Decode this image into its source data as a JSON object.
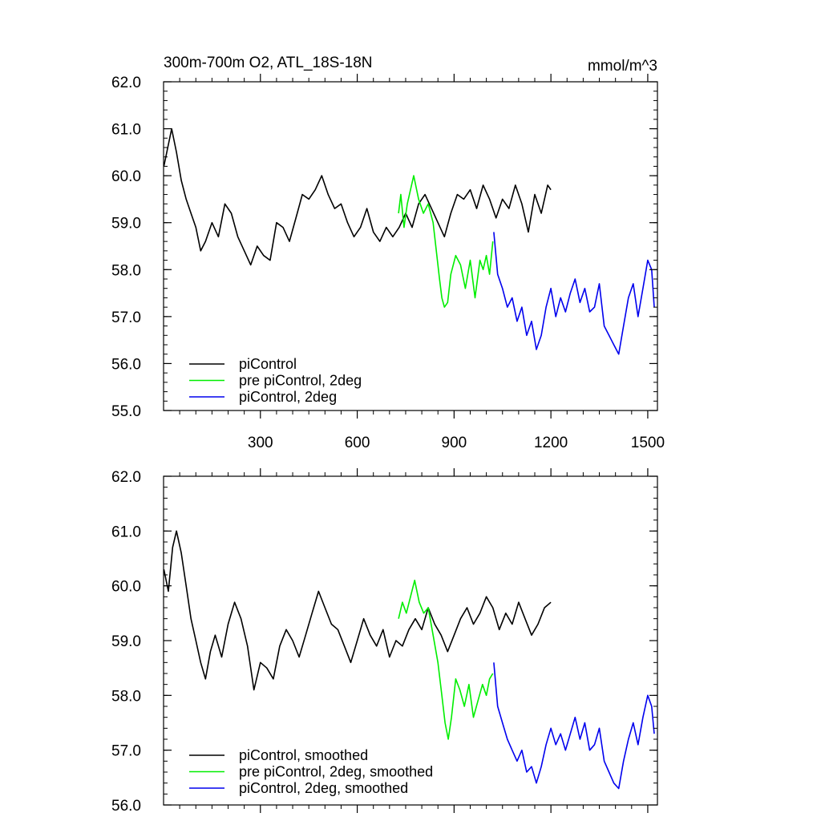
{
  "chart_data": [
    {
      "type": "line",
      "title": "300m-700m O2, ATL_18S-18N",
      "units": "mmol/m^3",
      "xlim": [
        0,
        1530
      ],
      "ylim": [
        55.0,
        62.0
      ],
      "x_ticks": [
        300,
        600,
        900,
        1200,
        1500
      ],
      "x_tick_labels": [
        "300",
        "600",
        "900",
        "1200",
        "1500"
      ],
      "y_ticks": [
        55.0,
        56.0,
        57.0,
        58.0,
        59.0,
        60.0,
        61.0,
        62.0
      ],
      "y_tick_labels": [
        "55.0",
        "56.0",
        "57.0",
        "58.0",
        "59.0",
        "60.0",
        "61.0",
        "62.0"
      ],
      "legend": "bottom-left",
      "series": [
        {
          "name": "piControl",
          "color": "#000000",
          "x": [
            1,
            25,
            40,
            55,
            70,
            85,
            100,
            115,
            130,
            150,
            170,
            190,
            210,
            230,
            250,
            270,
            290,
            310,
            330,
            350,
            370,
            390,
            410,
            430,
            450,
            470,
            490,
            510,
            530,
            550,
            570,
            590,
            610,
            630,
            650,
            670,
            690,
            710,
            730,
            750,
            770,
            790,
            810,
            830,
            850,
            870,
            890,
            910,
            930,
            950,
            970,
            990,
            1010,
            1030,
            1050,
            1070,
            1090,
            1110,
            1130,
            1150,
            1170,
            1190,
            1200
          ],
          "y": [
            60.2,
            61.0,
            60.5,
            59.9,
            59.5,
            59.2,
            58.9,
            58.4,
            58.6,
            59.0,
            58.7,
            59.4,
            59.2,
            58.7,
            58.4,
            58.1,
            58.5,
            58.3,
            58.2,
            59.0,
            58.9,
            58.6,
            59.1,
            59.6,
            59.5,
            59.7,
            60.0,
            59.6,
            59.3,
            59.4,
            59.0,
            58.7,
            58.9,
            59.3,
            58.8,
            58.6,
            58.9,
            58.7,
            58.9,
            59.2,
            58.9,
            59.4,
            59.6,
            59.3,
            59.0,
            58.7,
            59.2,
            59.6,
            59.5,
            59.7,
            59.3,
            59.8,
            59.5,
            59.1,
            59.5,
            59.3,
            59.8,
            59.4,
            58.8,
            59.6,
            59.2,
            59.8,
            59.7
          ]
        },
        {
          "name": "pre piControl, 2deg",
          "color": "#00ee00",
          "x": [
            728,
            735,
            745,
            755,
            765,
            775,
            790,
            805,
            820,
            835,
            845,
            855,
            862,
            870,
            880,
            890,
            905,
            920,
            935,
            950,
            965,
            980,
            990,
            1000,
            1010,
            1020
          ],
          "y": [
            59.2,
            59.6,
            58.9,
            59.4,
            59.7,
            60.0,
            59.5,
            59.2,
            59.4,
            59.0,
            58.4,
            57.8,
            57.4,
            57.2,
            57.3,
            57.9,
            58.3,
            58.1,
            57.6,
            58.2,
            57.4,
            58.2,
            58.0,
            58.3,
            57.9,
            58.6
          ]
        },
        {
          "name": "piControl, 2deg",
          "color": "#0000ee",
          "x": [
            1023,
            1035,
            1050,
            1065,
            1080,
            1095,
            1110,
            1125,
            1140,
            1155,
            1170,
            1185,
            1200,
            1215,
            1230,
            1245,
            1260,
            1275,
            1290,
            1305,
            1320,
            1335,
            1350,
            1365,
            1380,
            1395,
            1410,
            1425,
            1440,
            1455,
            1470,
            1485,
            1500,
            1512,
            1520
          ],
          "y": [
            58.8,
            57.9,
            57.6,
            57.2,
            57.4,
            56.9,
            57.2,
            56.6,
            56.9,
            56.3,
            56.6,
            57.2,
            57.6,
            57.0,
            57.4,
            57.1,
            57.5,
            57.8,
            57.3,
            57.6,
            57.1,
            57.2,
            57.7,
            56.8,
            56.6,
            56.4,
            56.2,
            56.8,
            57.4,
            57.7,
            57.0,
            57.6,
            58.2,
            58.0,
            57.2
          ]
        }
      ]
    },
    {
      "type": "line",
      "xlim": [
        0,
        1530
      ],
      "ylim": [
        56.0,
        62.0
      ],
      "x_ticks": [
        300,
        600,
        900,
        1200,
        1500
      ],
      "y_ticks": [
        56.0,
        57.0,
        58.0,
        59.0,
        60.0,
        61.0,
        62.0
      ],
      "y_tick_labels": [
        "56.0",
        "57.0",
        "58.0",
        "59.0",
        "60.0",
        "61.0",
        "62.0"
      ],
      "legend": "bottom-left",
      "series": [
        {
          "name": "piControl, smoothed",
          "color": "#000000",
          "x": [
            1,
            15,
            28,
            40,
            55,
            70,
            85,
            100,
            115,
            130,
            145,
            160,
            180,
            200,
            220,
            240,
            260,
            280,
            300,
            320,
            340,
            360,
            380,
            400,
            420,
            440,
            460,
            480,
            500,
            520,
            540,
            560,
            580,
            600,
            620,
            640,
            660,
            680,
            700,
            720,
            740,
            760,
            780,
            800,
            820,
            840,
            860,
            880,
            900,
            920,
            940,
            960,
            980,
            1000,
            1020,
            1040,
            1060,
            1080,
            1100,
            1120,
            1140,
            1160,
            1180,
            1200
          ],
          "y": [
            60.3,
            59.9,
            60.7,
            61.0,
            60.6,
            60.0,
            59.4,
            59.0,
            58.6,
            58.3,
            58.8,
            59.1,
            58.7,
            59.3,
            59.7,
            59.4,
            58.9,
            58.1,
            58.6,
            58.5,
            58.3,
            58.9,
            59.2,
            59.0,
            58.7,
            59.1,
            59.5,
            59.9,
            59.6,
            59.3,
            59.2,
            58.9,
            58.6,
            59.0,
            59.4,
            59.1,
            58.9,
            59.2,
            58.7,
            59.0,
            58.9,
            59.2,
            59.4,
            59.2,
            59.6,
            59.3,
            59.1,
            58.8,
            59.1,
            59.4,
            59.6,
            59.3,
            59.5,
            59.8,
            59.6,
            59.2,
            59.5,
            59.3,
            59.7,
            59.4,
            59.1,
            59.3,
            59.6,
            59.7
          ]
        },
        {
          "name": "pre piControl, 2deg, smoothed",
          "color": "#00ee00",
          "x": [
            728,
            740,
            752,
            765,
            778,
            792,
            806,
            820,
            835,
            850,
            862,
            872,
            882,
            892,
            905,
            918,
            932,
            946,
            960,
            974,
            988,
            1000,
            1010,
            1020
          ],
          "y": [
            59.4,
            59.7,
            59.5,
            59.8,
            60.1,
            59.7,
            59.5,
            59.6,
            59.1,
            58.6,
            58.0,
            57.5,
            57.2,
            57.6,
            58.3,
            58.1,
            57.8,
            58.2,
            57.6,
            57.9,
            58.2,
            58.0,
            58.3,
            58.4
          ]
        },
        {
          "name": "piControl, 2deg, smoothed",
          "color": "#0000ee",
          "x": [
            1023,
            1035,
            1050,
            1065,
            1080,
            1095,
            1110,
            1125,
            1140,
            1155,
            1170,
            1185,
            1200,
            1215,
            1230,
            1245,
            1260,
            1275,
            1290,
            1305,
            1320,
            1335,
            1350,
            1365,
            1380,
            1395,
            1410,
            1425,
            1440,
            1455,
            1470,
            1485,
            1500,
            1512,
            1520
          ],
          "y": [
            58.6,
            57.8,
            57.5,
            57.2,
            57.0,
            56.8,
            57.0,
            56.6,
            56.7,
            56.4,
            56.7,
            57.1,
            57.4,
            57.1,
            57.3,
            57.0,
            57.3,
            57.6,
            57.2,
            57.5,
            57.0,
            57.1,
            57.4,
            56.8,
            56.6,
            56.4,
            56.3,
            56.8,
            57.2,
            57.5,
            57.1,
            57.6,
            58.0,
            57.8,
            57.3
          ]
        }
      ]
    }
  ]
}
